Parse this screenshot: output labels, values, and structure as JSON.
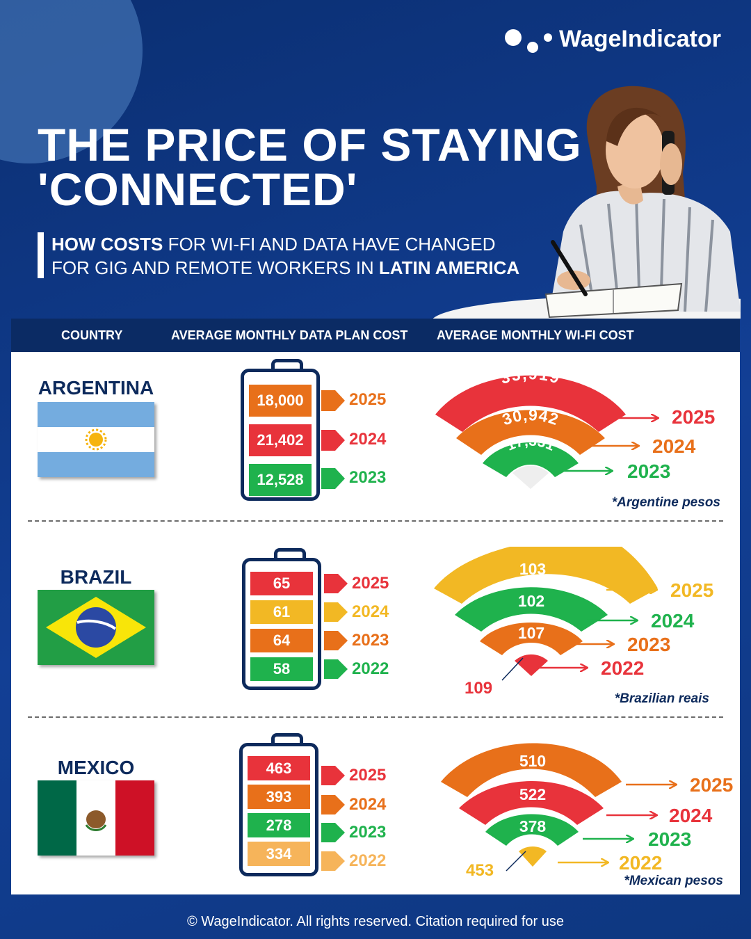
{
  "brand": {
    "name": "WageIndicator"
  },
  "title": {
    "line1": "THE PRICE OF STAYING",
    "line2": "'CONNECTED'"
  },
  "subtitle": {
    "line1_bold": "HOW COSTS",
    "line1_rest": " FOR WI-FI AND DATA HAVE CHANGED",
    "line2_rest": "FOR GIG AND REMOTE WORKERS IN ",
    "line2_bold": "LATIN AMERICA"
  },
  "table_header": {
    "country": "COUNTRY",
    "data_plan": "AVERAGE MONTHLY DATA PLAN COST",
    "wifi": "AVERAGE MONTHLY WI-FI COST"
  },
  "colors": {
    "red": "#e8333b",
    "orange": "#e8701a",
    "green": "#1fb24d",
    "yellow": "#f2b824",
    "light_orange": "#f6b45a",
    "navy": "#0d2a5c"
  },
  "chart_data": [
    {
      "type": "bar",
      "country": "ARGENTINA",
      "flag_icon": "argentina-flag-icon",
      "currency_note": "*Argentine pesos",
      "data_plan": [
        {
          "year": "2025",
          "value": "18,000",
          "color": "#e8701a"
        },
        {
          "year": "2024",
          "value": "21,402",
          "color": "#e8333b"
        },
        {
          "year": "2023",
          "value": "12,528",
          "color": "#1fb24d"
        }
      ],
      "wifi": [
        {
          "year": "2025",
          "value": "33,919",
          "color": "#e8333b"
        },
        {
          "year": "2024",
          "value": "30,942",
          "color": "#e8701a"
        },
        {
          "year": "2023",
          "value": "17,331",
          "color": "#1fb24d"
        }
      ]
    },
    {
      "type": "bar",
      "country": "BRAZIL",
      "flag_icon": "brazil-flag-icon",
      "currency_note": "*Brazilian reais",
      "data_plan": [
        {
          "year": "2025",
          "value": "65",
          "color": "#e8333b"
        },
        {
          "year": "2024",
          "value": "61",
          "color": "#f2b824"
        },
        {
          "year": "2023",
          "value": "64",
          "color": "#e8701a"
        },
        {
          "year": "2022",
          "value": "58",
          "color": "#1fb24d"
        }
      ],
      "wifi": [
        {
          "year": "2025",
          "value": "103",
          "color": "#f2b824"
        },
        {
          "year": "2024",
          "value": "102",
          "color": "#1fb24d"
        },
        {
          "year": "2023",
          "value": "107",
          "color": "#e8701a"
        },
        {
          "year": "2022",
          "value": "109",
          "color": "#e8333b"
        }
      ]
    },
    {
      "type": "bar",
      "country": "MEXICO",
      "flag_icon": "mexico-flag-icon",
      "currency_note": "*Mexican  pesos",
      "data_plan": [
        {
          "year": "2025",
          "value": "463",
          "color": "#e8333b"
        },
        {
          "year": "2024",
          "value": "393",
          "color": "#e8701a"
        },
        {
          "year": "2023",
          "value": "278",
          "color": "#1fb24d"
        },
        {
          "year": "2022",
          "value": "334",
          "color": "#f6b45a"
        }
      ],
      "wifi": [
        {
          "year": "2025",
          "value": "510",
          "color": "#e8701a"
        },
        {
          "year": "2024",
          "value": "522",
          "color": "#e8333b"
        },
        {
          "year": "2023",
          "value": "378",
          "color": "#1fb24d"
        },
        {
          "year": "2022",
          "value": "453",
          "color": "#f2b824"
        }
      ]
    }
  ],
  "footer": "© WageIndicator. All rights reserved. Citation required for use"
}
